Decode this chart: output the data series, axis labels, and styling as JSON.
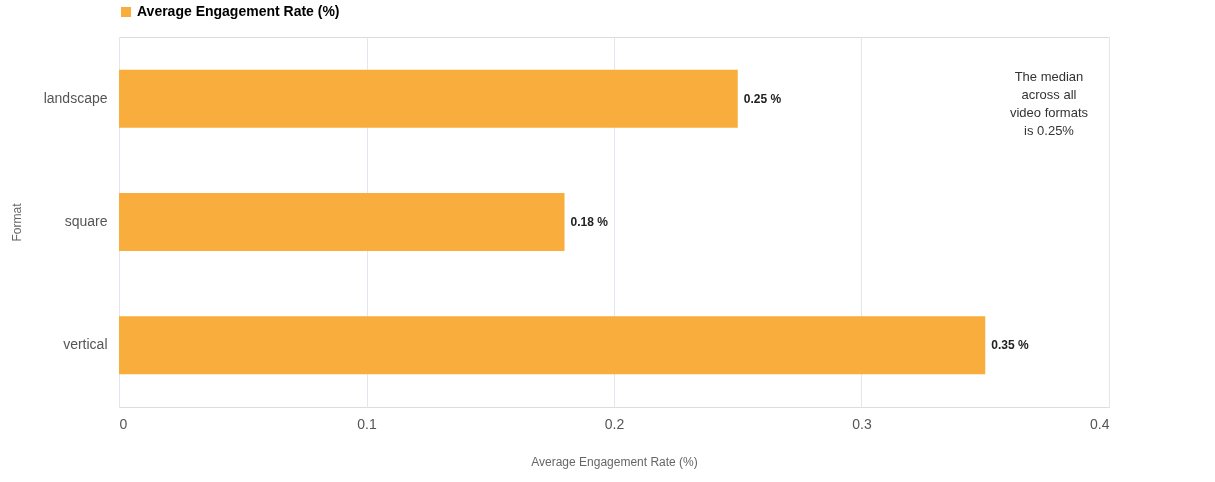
{
  "chart_data": {
    "type": "bar",
    "orientation": "horizontal",
    "categories": [
      "landscape",
      "square",
      "vertical"
    ],
    "series": [
      {
        "name": "Average Engagement Rate (%)",
        "color": "#f9ad3c",
        "values": [
          0.25,
          0.18,
          0.35
        ],
        "value_labels": [
          "0.25 %",
          "0.18 %",
          "0.35 %"
        ]
      }
    ],
    "xlabel": "Average Engagement Rate (%)",
    "ylabel": "Format",
    "xlim": [
      0,
      0.4
    ],
    "xticks": [
      0,
      0.1,
      0.2,
      0.3,
      0.4
    ],
    "grid": "x",
    "legend": "top",
    "annotations": [
      "The median across all video formats is 0.25%"
    ]
  }
}
